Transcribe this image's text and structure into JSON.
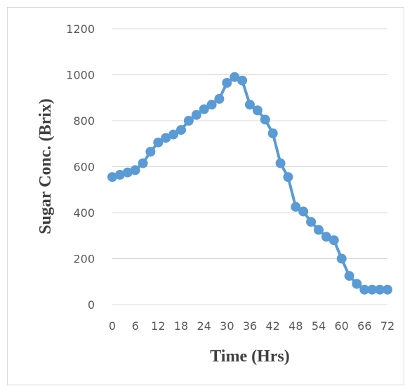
{
  "chart_data": {
    "type": "line",
    "title": "",
    "xlabel": "Time (Hrs)",
    "ylabel": "Sugar Conc. (Brix)",
    "xlim": [
      0,
      72
    ],
    "ylim": [
      0,
      1200
    ],
    "x_ticks": [
      0,
      6,
      12,
      18,
      24,
      30,
      36,
      42,
      48,
      54,
      60,
      66,
      72
    ],
    "y_ticks": [
      0,
      200,
      400,
      600,
      800,
      1000,
      1200
    ],
    "grid": "horizontal",
    "legend": "none",
    "series": [
      {
        "color": "#5b9bd5",
        "marker": "circle",
        "x": [
          0,
          2,
          4,
          6,
          8,
          10,
          12,
          14,
          16,
          18,
          20,
          22,
          24,
          26,
          28,
          30,
          32,
          34,
          36,
          38,
          40,
          42,
          44,
          46,
          48,
          50,
          52,
          54,
          56,
          58,
          60,
          62,
          64,
          66,
          68,
          70,
          72
        ],
        "y": [
          555,
          565,
          575,
          585,
          615,
          665,
          705,
          725,
          740,
          760,
          800,
          825,
          850,
          870,
          895,
          965,
          990,
          975,
          870,
          845,
          805,
          745,
          615,
          555,
          425,
          405,
          360,
          325,
          295,
          280,
          200,
          125,
          90,
          65,
          65,
          65,
          65
        ]
      }
    ]
  }
}
